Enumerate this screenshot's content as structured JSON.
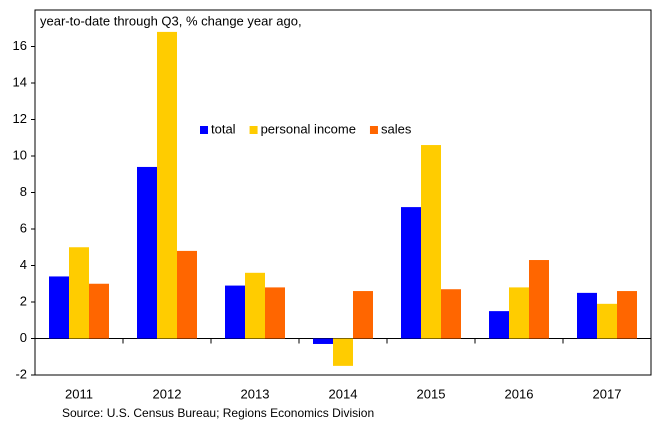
{
  "chart_data": {
    "type": "bar",
    "title": "year-to-date through Q3, % change year ago,",
    "source": "Source: U.S. Census Bureau; Regions Economics Division",
    "categories": [
      "2011",
      "2012",
      "2013",
      "2014",
      "2015",
      "2016",
      "2017"
    ],
    "series": [
      {
        "name": "total",
        "color": "#0000ff",
        "values": [
          3.4,
          9.4,
          2.9,
          -0.3,
          7.2,
          1.5,
          2.5
        ]
      },
      {
        "name": "personal income",
        "color": "#ffcc00",
        "values": [
          5.0,
          16.8,
          3.6,
          -1.5,
          10.6,
          2.8,
          1.9
        ]
      },
      {
        "name": "sales",
        "color": "#ff6600",
        "values": [
          3.0,
          4.8,
          2.8,
          2.6,
          2.7,
          4.3,
          2.6
        ]
      }
    ],
    "ylim": [
      -2,
      18
    ],
    "yticks": [
      -2,
      0,
      2,
      4,
      6,
      8,
      10,
      12,
      14,
      16
    ],
    "legend": "upper center"
  }
}
